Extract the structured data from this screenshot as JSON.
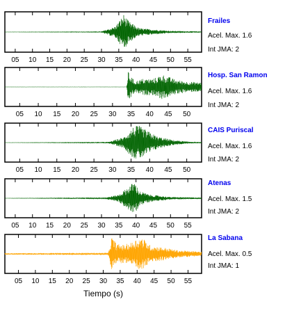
{
  "chart_data": [
    {
      "type": "line",
      "title": "Frailes",
      "info": [
        "Acel. Max. 1.6",
        "Int JMA: 2"
      ],
      "xlim": [
        2,
        59
      ],
      "ylim": [
        -1,
        1
      ],
      "xticks": [
        "05",
        "10",
        "15",
        "20",
        "25",
        "30",
        "35",
        "40",
        "45",
        "50",
        "55"
      ],
      "color": "#006400",
      "grid": false,
      "series": [
        {
          "x": [
            2,
            30,
            34,
            36.5,
            37,
            38,
            41,
            50,
            59
          ],
          "values": [
            0.01,
            0.03,
            0.3,
            0.95,
            0.8,
            0.55,
            0.2,
            0.06,
            0.03
          ]
        }
      ]
    },
    {
      "type": "line",
      "title": "Hosp. San Ramon",
      "info": [
        "Acel. Max. 1.6",
        "Int JMA: 2"
      ],
      "xlim": [
        1,
        54
      ],
      "ylim": [
        -1,
        1
      ],
      "xticks": [
        "05",
        "10",
        "15",
        "20",
        "25",
        "30",
        "35",
        "40",
        "45",
        "50"
      ],
      "color": "#006400",
      "grid": false,
      "series": [
        {
          "x": [
            1,
            33.8,
            34.2,
            36,
            38,
            41,
            43.5,
            47,
            50,
            54
          ],
          "values": [
            0.01,
            0.01,
            0.85,
            0.3,
            0.45,
            0.45,
            0.7,
            0.4,
            0.3,
            0.25
          ]
        }
      ]
    },
    {
      "type": "line",
      "title": "CAIS Puriscal",
      "info": [
        "Acel. Max. 1.6",
        "Int JMA: 2"
      ],
      "xlim": [
        1,
        54
      ],
      "ylim": [
        -1,
        1
      ],
      "xticks": [
        "05",
        "10",
        "15",
        "20",
        "25",
        "30",
        "35",
        "40",
        "45",
        "50"
      ],
      "color": "#006400",
      "grid": false,
      "series": [
        {
          "x": [
            1,
            29,
            33,
            35.5,
            37,
            39,
            42,
            46,
            50,
            54
          ],
          "values": [
            0.01,
            0.04,
            0.3,
            0.85,
            0.95,
            0.7,
            0.35,
            0.15,
            0.06,
            0.03
          ]
        }
      ]
    },
    {
      "type": "line",
      "title": "Atenas",
      "info": [
        "Acel. Max. 1.5",
        "Int JMA: 2"
      ],
      "xlim": [
        2,
        59
      ],
      "ylim": [
        -1,
        1
      ],
      "xticks": [
        "05",
        "10",
        "15",
        "20",
        "25",
        "30",
        "35",
        "40",
        "45",
        "50",
        "55"
      ],
      "color": "#006400",
      "grid": false,
      "series": [
        {
          "x": [
            2,
            31.5,
            35,
            38.5,
            39.5,
            41,
            44,
            50,
            59
          ],
          "values": [
            0.01,
            0.05,
            0.2,
            0.75,
            0.95,
            0.4,
            0.2,
            0.07,
            0.04
          ]
        }
      ]
    },
    {
      "type": "line",
      "title": "La Sabana",
      "info": [
        "Acel. Max. 0.5",
        "Int JMA: 1"
      ],
      "xlim": [
        1,
        59
      ],
      "ylim": [
        -1,
        1
      ],
      "xticks": [
        "05",
        "10",
        "15",
        "20",
        "25",
        "30",
        "35",
        "40",
        "45",
        "50",
        "55"
      ],
      "xlabel": "Tiempo (s)",
      "color": "#ffa500",
      "grid": false,
      "series": [
        {
          "x": [
            1,
            31.5,
            32.5,
            34,
            36,
            38,
            40,
            41.5,
            44,
            48,
            52,
            59
          ],
          "values": [
            0.04,
            0.06,
            0.95,
            0.55,
            0.5,
            0.6,
            0.85,
            0.9,
            0.45,
            0.35,
            0.2,
            0.12
          ]
        }
      ]
    }
  ]
}
